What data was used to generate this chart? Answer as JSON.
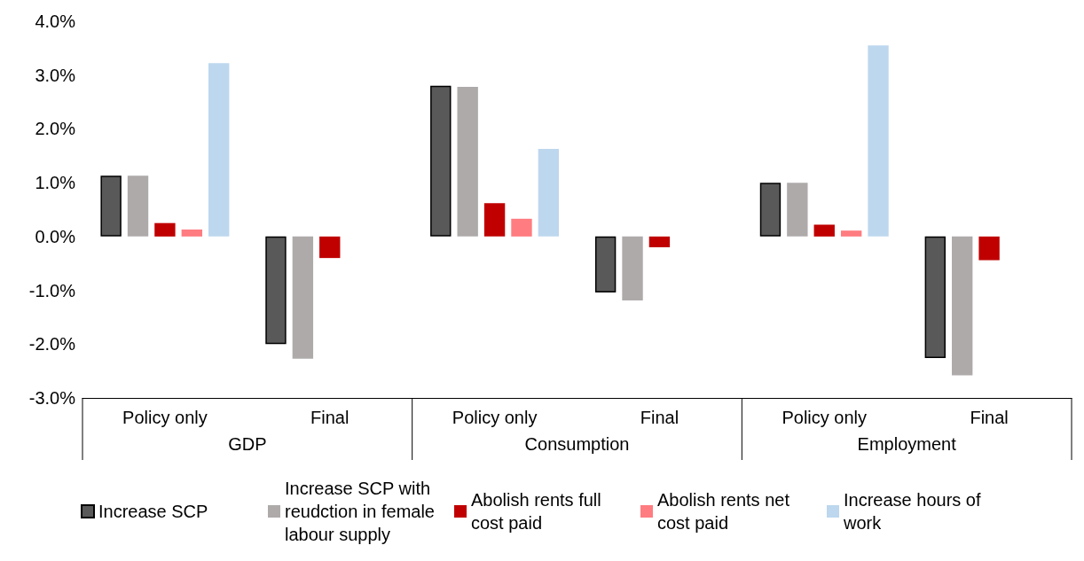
{
  "chart_data": {
    "type": "bar",
    "categories": [
      "Policy only",
      "Final",
      "Policy only",
      "Final",
      "Policy only",
      "Final"
    ],
    "annotations": [
      "GDP",
      "Consumption",
      "Employment"
    ],
    "series": [
      {
        "name": "Increase SCP",
        "color": "#595959",
        "values": [
          1.13,
          -2.0,
          2.8,
          -1.04,
          1.0,
          -2.26
        ]
      },
      {
        "name": "Increase SCP with reudction in female labour supply",
        "color": "#aeaaaa",
        "values": [
          1.13,
          -2.27,
          2.78,
          -1.19,
          1.0,
          -2.58
        ]
      },
      {
        "name": "Abolish rents full cost paid",
        "color": "#c00000",
        "values": [
          0.25,
          -0.4,
          0.62,
          -0.2,
          0.22,
          -0.44
        ]
      },
      {
        "name": "Abolish rents net cost paid",
        "color": "#ff7c80",
        "values": [
          0.13,
          null,
          0.33,
          null,
          0.11,
          null
        ]
      },
      {
        "name": "Increase hours of work",
        "color": "#bdd7ee",
        "values": [
          3.22,
          null,
          1.63,
          null,
          3.55,
          null
        ]
      }
    ],
    "ylim": [
      -3,
      4
    ],
    "yticks": [
      {
        "value": -3,
        "label": "-3.0%"
      },
      {
        "value": -2,
        "label": "-2.0%"
      },
      {
        "value": -1,
        "label": "-1.0%"
      },
      {
        "value": 0,
        "label": "0.0%"
      },
      {
        "value": 1,
        "label": "1.0%"
      },
      {
        "value": 2,
        "label": "2.0%"
      },
      {
        "value": 3,
        "label": "3.0%"
      },
      {
        "value": 4,
        "label": "4.0%"
      }
    ],
    "grid": false,
    "legend": "bottom"
  }
}
